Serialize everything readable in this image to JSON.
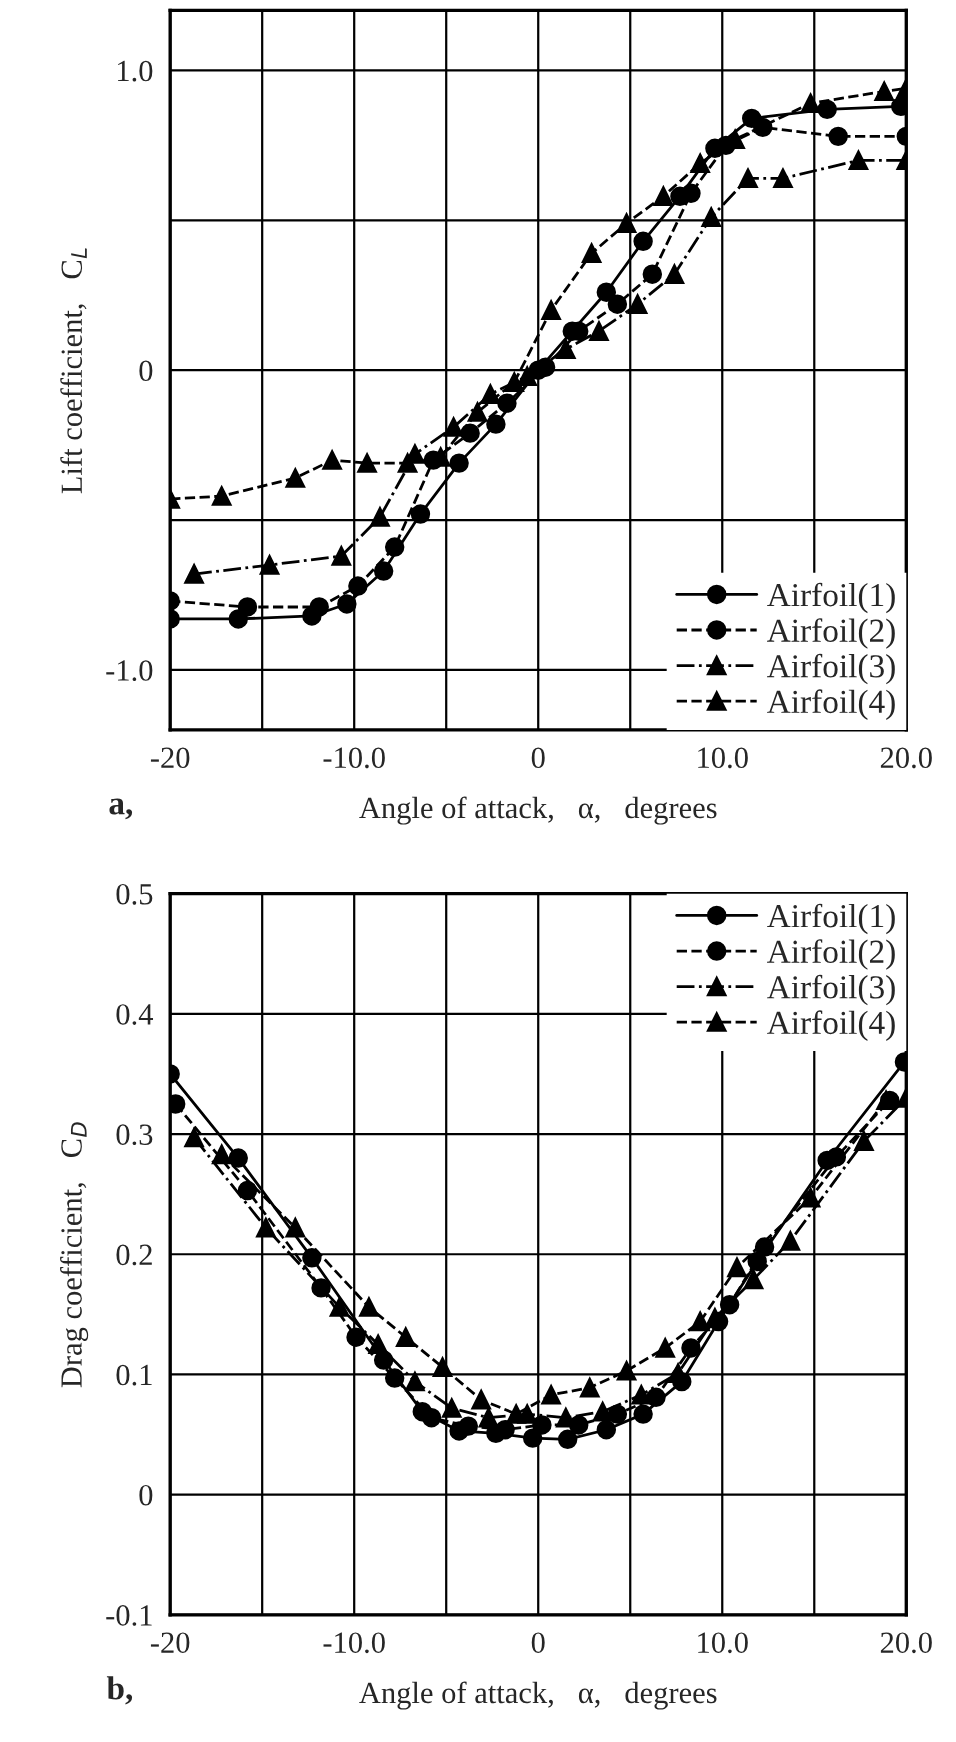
{
  "chart_data": [
    {
      "type": "line",
      "xlabel": "Angle of attack,   α,   degrees",
      "ylabel": "Lift coefficient,   C$_{L}$",
      "annotations": [
        "a,"
      ],
      "xlim": [
        -20,
        20
      ],
      "ylim": [
        -1.2,
        1.2
      ],
      "xticks": [
        -20,
        {
          "value": -15,
          "label": null
        },
        {
          "value": -10,
          "label": "-10.0"
        },
        {
          "value": -5,
          "label": null
        },
        0,
        {
          "value": 5,
          "label": null
        },
        {
          "value": 10,
          "label": "10.0"
        },
        {
          "value": 15,
          "label": null
        },
        {
          "value": 20,
          "label": "20.0"
        }
      ],
      "yticks": [
        {
          "value": -1.0,
          "label": "-1.0"
        },
        {
          "value": -0.5,
          "label": null
        },
        0,
        {
          "value": 0.5,
          "label": null
        },
        {
          "value": 1.0,
          "label": "1.0"
        }
      ],
      "grid": true,
      "legend": "bottom right",
      "series": [
        {
          "name": "Airfoil(1)",
          "color": "#000000",
          "marker": "circle",
          "line_style": "solid",
          "x": [
            -20,
            -16.3,
            -12.3,
            -10.4,
            -8.4,
            -6.4,
            -4.3,
            -2.3,
            0,
            1.85,
            3.7,
            5.7,
            7.7,
            9.6,
            11.6,
            15.7,
            19.7
          ],
          "values": [
            -0.83,
            -0.83,
            -0.82,
            -0.78,
            -0.67,
            -0.48,
            -0.31,
            -0.18,
            0,
            0.13,
            0.26,
            0.43,
            0.58,
            0.74,
            0.84,
            0.87,
            0.88
          ]
        },
        {
          "name": "Airfoil(2)",
          "color": "#000000",
          "marker": "circle",
          "line_style": "dashed",
          "x": [
            -20,
            -15.8,
            -11.9,
            -9.8,
            -7.8,
            -5.7,
            -3.7,
            -1.7,
            0.4,
            2.2,
            4.3,
            6.2,
            8.3,
            10.2,
            12.2,
            16.3,
            20
          ],
          "values": [
            -0.77,
            -0.79,
            -0.79,
            -0.72,
            -0.59,
            -0.3,
            -0.21,
            -0.11,
            0.01,
            0.13,
            0.22,
            0.32,
            0.59,
            0.75,
            0.81,
            0.78,
            0.78
          ]
        },
        {
          "name": "Airfoil(3)",
          "color": "#000000",
          "marker": "triangle",
          "line_style": "dotted",
          "x": [
            -18.7,
            -14.6,
            -10.7,
            -8.6,
            -6.7,
            -4.6,
            -2.6,
            -0.6,
            1.5,
            3.3,
            5.4,
            7.4,
            9.4,
            11.4,
            13.3,
            17.4,
            20
          ],
          "values": [
            -0.68,
            -0.65,
            -0.62,
            -0.49,
            -0.28,
            -0.19,
            -0.08,
            -0.02,
            0.07,
            0.13,
            0.22,
            0.32,
            0.51,
            0.64,
            0.64,
            0.7,
            0.7
          ]
        },
        {
          "name": "Airfoil(4)",
          "color": "#000000",
          "marker": "triangle",
          "line_style": "dashed",
          "x": [
            -20,
            -17.2,
            -13.2,
            -11.2,
            -9.3,
            -7.1,
            -5.3,
            -3.3,
            -1.3,
            0.7,
            2.9,
            4.8,
            6.8,
            8.8,
            10.7,
            14.8,
            18.8,
            20
          ],
          "values": [
            -0.43,
            -0.42,
            -0.36,
            -0.3,
            -0.31,
            -0.31,
            -0.29,
            -0.14,
            -0.04,
            0.2,
            0.39,
            0.49,
            0.58,
            0.69,
            0.77,
            0.89,
            0.93,
            0.94
          ]
        }
      ]
    },
    {
      "type": "line",
      "xlabel": "Angle of attack,   α,   degrees",
      "ylabel": "Drag coefficient,   C$_{D}$",
      "annotations": [
        "b,"
      ],
      "xlim": [
        -20,
        20
      ],
      "ylim": [
        -0.1,
        0.5
      ],
      "xticks": [
        -20,
        {
          "value": -15,
          "label": null
        },
        {
          "value": -10,
          "label": "-10.0"
        },
        {
          "value": -5,
          "label": null
        },
        0,
        {
          "value": 5,
          "label": null
        },
        {
          "value": 10,
          "label": "10.0"
        },
        {
          "value": 15,
          "label": null
        },
        {
          "value": 20,
          "label": "20.0"
        }
      ],
      "yticks": [
        -0.1,
        0,
        0.1,
        0.2,
        0.3,
        0.4,
        0.5
      ],
      "grid": true,
      "legend": "top right",
      "series": [
        {
          "name": "Airfoil(1)",
          "color": "#000000",
          "marker": "circle",
          "line_style": "solid",
          "x": [
            -20,
            -16.3,
            -12.3,
            -8.4,
            -6.3,
            -4.3,
            -2.3,
            -0.3,
            1.6,
            3.7,
            5.7,
            7.8,
            9.8,
            11.9,
            15.7,
            19.9
          ],
          "values": [
            0.35,
            0.28,
            0.197,
            0.112,
            0.069,
            0.053,
            0.051,
            0.047,
            0.046,
            0.054,
            0.067,
            0.094,
            0.144,
            0.194,
            0.278,
            0.36
          ]
        },
        {
          "name": "Airfoil(2)",
          "color": "#000000",
          "marker": "circle",
          "line_style": "dashed",
          "x": [
            -19.7,
            -15.8,
            -11.8,
            -9.9,
            -7.8,
            -5.8,
            -3.8,
            -1.8,
            0.2,
            2.2,
            4.3,
            6.4,
            8.3,
            10.4,
            12.3,
            16.2,
            19.1
          ],
          "values": [
            0.325,
            0.253,
            0.172,
            0.131,
            0.097,
            0.064,
            0.057,
            0.054,
            0.058,
            0.058,
            0.067,
            0.081,
            0.122,
            0.158,
            0.206,
            0.281,
            0.328
          ]
        },
        {
          "name": "Airfoil(3)",
          "color": "#000000",
          "marker": "triangle",
          "line_style": "dotted",
          "x": [
            -18.7,
            -14.8,
            -10.8,
            -8.7,
            -6.7,
            -4.7,
            -2.7,
            -0.6,
            1.5,
            3.5,
            5.6,
            7.6,
            9.6,
            11.7,
            13.7,
            17.7,
            20
          ],
          "values": [
            0.297,
            0.222,
            0.156,
            0.125,
            0.094,
            0.072,
            0.064,
            0.067,
            0.064,
            0.069,
            0.083,
            0.101,
            0.147,
            0.179,
            0.211,
            0.294,
            0.33
          ]
        },
        {
          "name": "Airfoil(4)",
          "color": "#000000",
          "marker": "triangle",
          "line_style": "dashed",
          "x": [
            -17.2,
            -13.2,
            -9.2,
            -7.2,
            -5.2,
            -3.1,
            -1.2,
            0.7,
            2.8,
            4.8,
            6.9,
            8.8,
            10.8,
            14.8,
            18.9
          ],
          "values": [
            0.283,
            0.222,
            0.156,
            0.131,
            0.106,
            0.079,
            0.067,
            0.083,
            0.089,
            0.103,
            0.122,
            0.144,
            0.189,
            0.247,
            0.328
          ]
        }
      ]
    }
  ]
}
